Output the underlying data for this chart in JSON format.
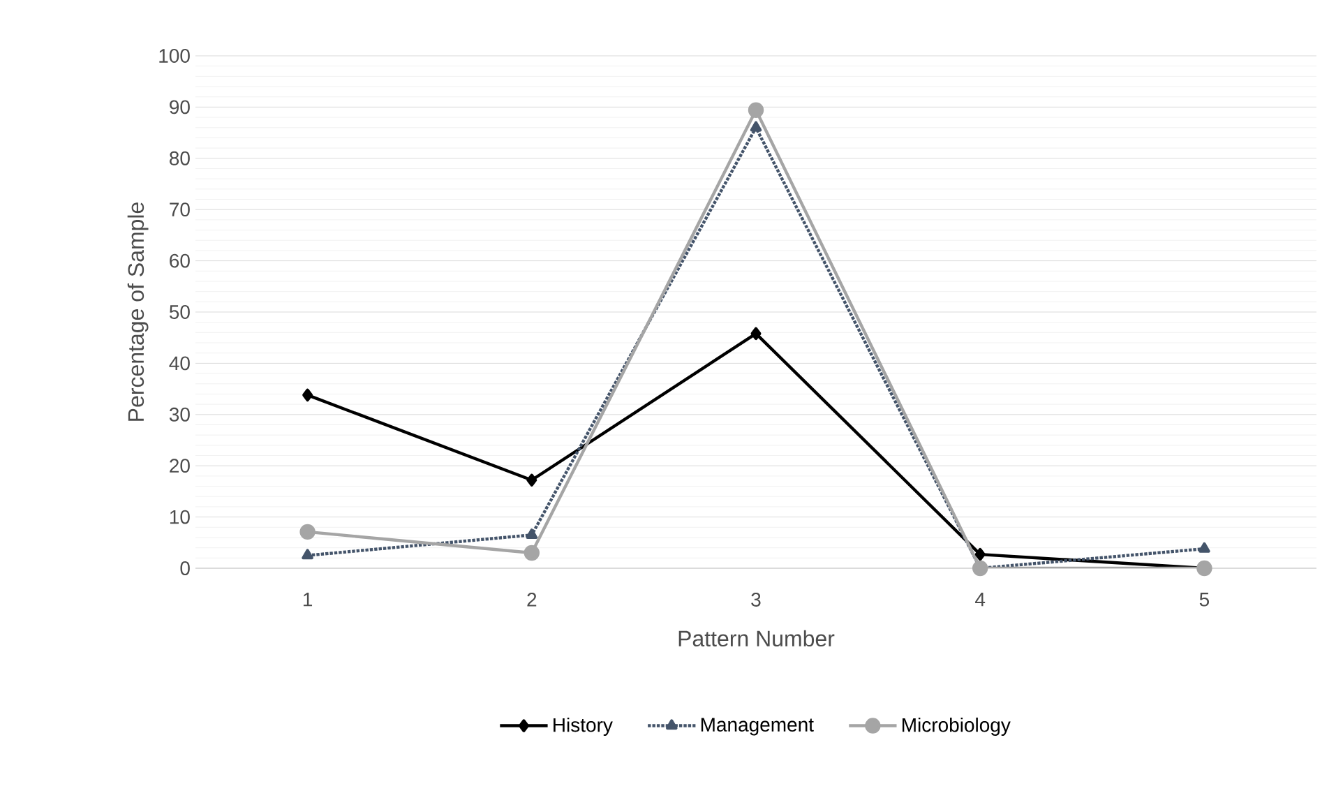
{
  "chart_data": {
    "type": "line",
    "xlabel": "Pattern Number",
    "ylabel": "Percentage of Sample",
    "categories": [
      "1",
      "2",
      "3",
      "4",
      "5"
    ],
    "series": [
      {
        "name": "History",
        "color": "#000000",
        "marker": "diamond",
        "line_style": "solid",
        "values": [
          33.8,
          17.2,
          45.8,
          2.7,
          0
        ]
      },
      {
        "name": "Management",
        "color": "#44546a",
        "marker": "triangle",
        "line_style": "dotted",
        "values": [
          2.5,
          6.5,
          86,
          0,
          3.8
        ]
      },
      {
        "name": "Microbiology",
        "color": "#a5a5a5",
        "marker": "circle",
        "line_style": "solid",
        "values": [
          7.1,
          3,
          89.4,
          0,
          0
        ]
      }
    ],
    "ylim": [
      0,
      100
    ],
    "yticks": [
      0,
      10,
      20,
      30,
      40,
      50,
      60,
      70,
      80,
      90,
      100
    ],
    "grid": "y",
    "legend": "bottom"
  }
}
